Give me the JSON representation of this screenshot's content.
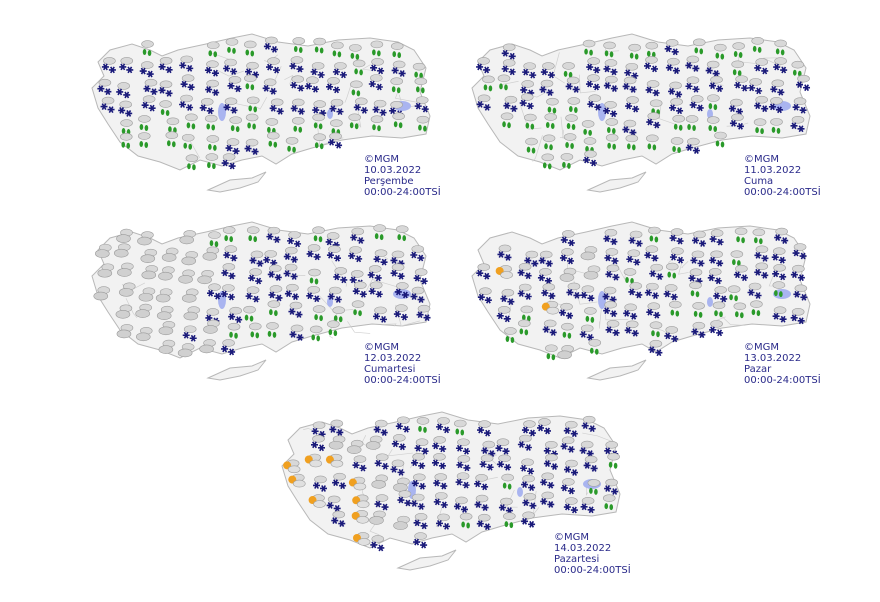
{
  "colors": {
    "land": "#f2f2f2",
    "border": "#b8b8b8",
    "lake": "#a9b4f0",
    "snow": "#1a1a7a",
    "rain": "#2a9a2a",
    "sun": "#f0a020",
    "cloud": "#9a9a9a",
    "label": "#2a2a8a"
  },
  "maps": [
    {
      "credit": "©MGM",
      "date": "10.03.2022",
      "day": "Perşembe",
      "period": "00:00-24:00TSİ",
      "icons": {
        "snow": 0.7,
        "rain": 0.3,
        "cloud": 0,
        "sun": 0
      }
    },
    {
      "credit": "©MGM",
      "date": "11.03.2022",
      "day": "Cuma",
      "period": "00:00-24:00TSİ",
      "icons": {
        "snow": 0.75,
        "rain": 0.25,
        "cloud": 0,
        "sun": 0
      }
    },
    {
      "credit": "©MGM",
      "date": "12.03.2022",
      "day": "Cumartesi",
      "period": "00:00-24:00TSİ",
      "icons": {
        "snow": 0.55,
        "rain": 0.15,
        "cloud": 0.3,
        "sun": 0
      }
    },
    {
      "credit": "©MGM",
      "date": "13.03.2022",
      "day": "Pazar",
      "period": "00:00-24:00TSİ",
      "icons": {
        "snow": 0.7,
        "rain": 0.2,
        "cloud": 0.05,
        "sun": 0.05
      }
    },
    {
      "credit": "©MGM",
      "date": "14.03.2022",
      "day": "Pazartesi",
      "period": "00:00-24:00TSİ",
      "icons": {
        "snow": 0.6,
        "rain": 0.1,
        "cloud": 0.15,
        "sun": 0.15
      }
    }
  ]
}
